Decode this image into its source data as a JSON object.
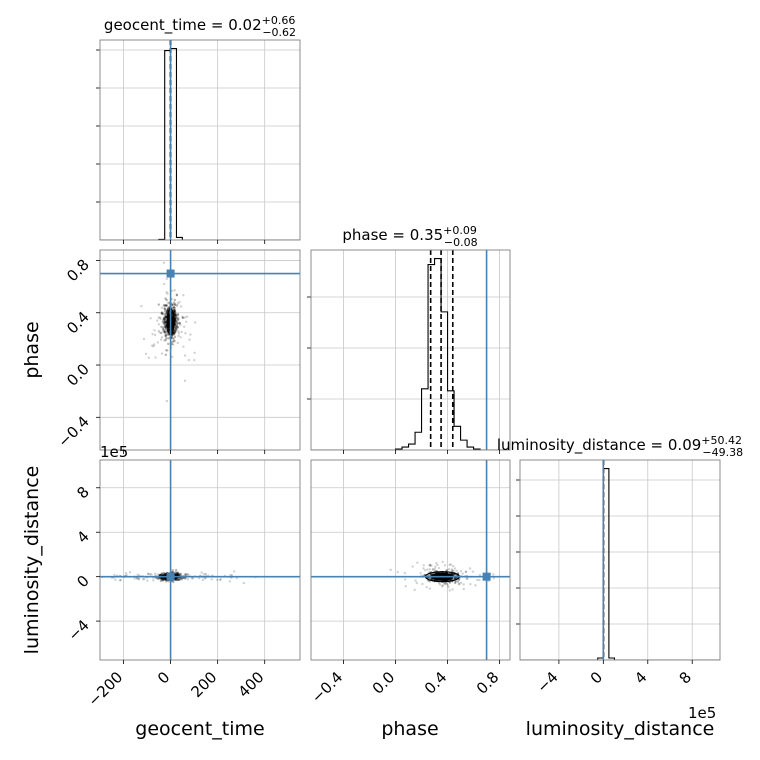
{
  "chart_data": {
    "type": "corner",
    "parameters": [
      "geocent_time",
      "phase",
      "luminosity_distance"
    ],
    "titles": [
      {
        "param": "geocent_time",
        "prefix": "geocent_time = ",
        "median": "0.02",
        "plus": "+0.66",
        "minus": "−0.62"
      },
      {
        "param": "phase",
        "prefix": "phase = ",
        "median": "0.35",
        "plus": "+0.09",
        "minus": "−0.08"
      },
      {
        "param": "luminosity_distance",
        "prefix": "luminosity_distance = ",
        "median": "0.09",
        "plus": "+50.42",
        "minus": "−49.38"
      }
    ],
    "axis_labels": [
      "geocent_time",
      "phase",
      "luminosity_distance"
    ],
    "offset_label": "1e5",
    "ranges": {
      "geocent_time": [
        -300,
        550
      ],
      "phase": [
        -0.65,
        0.88
      ],
      "luminosity_distance": [
        -750000,
        1050000
      ]
    },
    "ticks": {
      "geocent_time": {
        "values": [
          -200,
          0,
          200,
          400
        ],
        "labels": [
          "−200",
          "0",
          "200",
          "400"
        ]
      },
      "phase": {
        "values": [
          -0.4,
          0.0,
          0.4,
          0.8
        ],
        "labels": [
          "−0.4",
          "0.0",
          "0.4",
          "0.8"
        ]
      },
      "luminosity_distance": {
        "values": [
          -400000,
          0,
          400000,
          800000
        ],
        "labels": [
          "−4",
          "0",
          "4",
          "8"
        ]
      }
    },
    "injection": {
      "geocent_time": 0,
      "phase": 0.7,
      "luminosity_distance": 0
    },
    "injection_color": "#4682b4",
    "quantiles": {
      "geocent_time": [
        -0.6,
        0.02,
        0.68
      ],
      "phase": [
        0.27,
        0.35,
        0.44
      ],
      "luminosity_distance": [
        -49.29,
        0.09,
        50.51
      ]
    },
    "histograms": {
      "geocent_time": {
        "edges": [
          -300,
          -275,
          -250,
          -225,
          -200,
          -175,
          -150,
          -125,
          -100,
          -75,
          -50,
          -25,
          0,
          25,
          50,
          75,
          100,
          125,
          150,
          175,
          200,
          225,
          250,
          275,
          300,
          325,
          350,
          375,
          400,
          425,
          450,
          475,
          500,
          525,
          550
        ],
        "counts": [
          0,
          0,
          0,
          0,
          0,
          0,
          0,
          0,
          0,
          0,
          0.3,
          96,
          97,
          1.3,
          0,
          0,
          0,
          0,
          0,
          0,
          0,
          0,
          0,
          0,
          0,
          0,
          0,
          0,
          0,
          0,
          0,
          0,
          0,
          0
        ]
      },
      "phase": {
        "edges": [
          -0.65,
          -0.6,
          -0.55,
          -0.5,
          -0.45,
          -0.4,
          -0.35,
          -0.3,
          -0.25,
          -0.2,
          -0.15,
          -0.1,
          -0.05,
          0.0,
          0.05,
          0.1,
          0.15,
          0.2,
          0.25,
          0.3,
          0.35,
          0.4,
          0.45,
          0.5,
          0.55,
          0.6,
          0.65,
          0.7,
          0.75,
          0.8,
          0.85,
          0.88
        ],
        "counts": [
          0,
          0,
          0,
          0,
          0,
          0,
          0,
          0,
          0,
          0,
          0,
          0,
          0,
          0.5,
          1.5,
          3,
          9,
          31,
          94,
          97,
          70,
          30,
          12,
          5,
          1.5,
          0.5,
          0,
          0,
          0,
          0,
          0
        ]
      },
      "luminosity_distance": {
        "edges": [
          -750000,
          -700000,
          -650000,
          -600000,
          -550000,
          -500000,
          -450000,
          -400000,
          -350000,
          -300000,
          -250000,
          -200000,
          -150000,
          -100000,
          -50000,
          0,
          50000,
          100000,
          150000,
          200000,
          250000,
          300000,
          350000,
          400000,
          450000,
          500000,
          550000,
          600000,
          650000,
          700000,
          750000,
          800000,
          850000,
          900000,
          950000,
          1000000,
          1050000
        ],
        "counts": [
          0,
          0,
          0,
          0,
          0,
          0,
          0,
          0,
          0,
          0,
          0,
          0,
          0,
          0,
          1,
          96,
          1,
          0,
          0,
          0,
          0,
          0,
          0,
          0,
          0,
          0,
          0,
          0,
          0,
          0,
          0,
          0,
          0,
          0,
          0,
          0
        ]
      }
    },
    "joint": {
      "phase_vs_geocent_time": {
        "center": [
          0,
          0.33
        ],
        "sigma": [
          13,
          0.06
        ],
        "outlier_spread": [
          45,
          0.15
        ],
        "contour_radii": [
          [
            8,
            0.05
          ],
          [
            14,
            0.1
          ]
        ]
      },
      "luminosity_distance_vs_geocent_time": {
        "center": [
          0,
          0
        ],
        "sigma": [
          20,
          15000
        ],
        "outlier_spread": [
          150,
          20000
        ],
        "contour_radii": [
          [
            30,
            5000
          ],
          [
            35,
            15000
          ]
        ]
      },
      "luminosity_distance_vs_phase": {
        "center": [
          0.36,
          0
        ],
        "sigma": [
          0.05,
          20000
        ],
        "outlier_spread": [
          0.15,
          60000
        ],
        "contour_radii": [
          [
            0.08,
            30000
          ],
          [
            0.13,
            45000
          ]
        ]
      }
    }
  }
}
